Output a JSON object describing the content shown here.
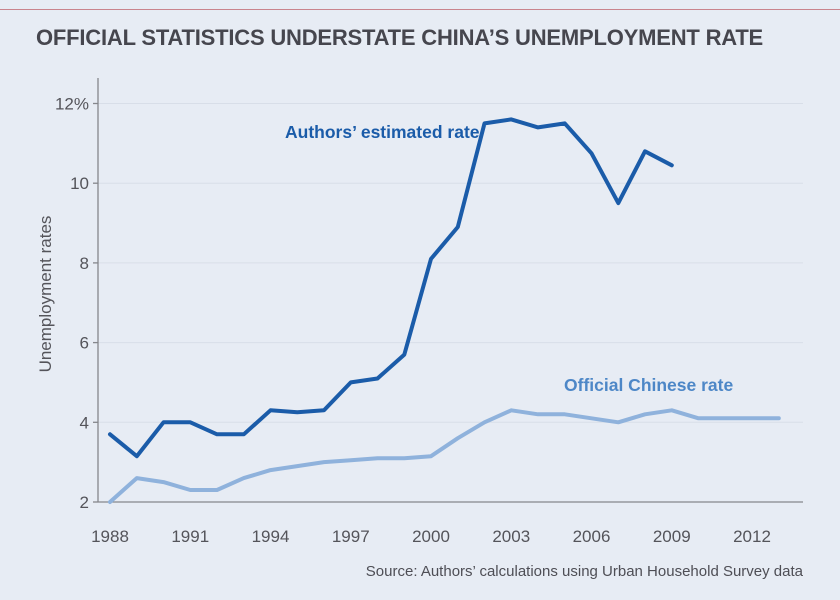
{
  "page": {
    "title": "OFFICIAL STATISTICS UNDERSTATE CHINA’S UNEMPLOYMENT RATE",
    "source_note": "Source: Authors’ calculations using Urban Household Survey data"
  },
  "colors": {
    "background": "#e7ecf4",
    "top_rule": "#c9848d",
    "title_text": "#46464e",
    "axis_text": "#54545a",
    "axis_line": "#85878c",
    "gridline": "#d8dee8",
    "estimated_series": "#1b5ca9",
    "official_series": "#8fb2dc",
    "official_label": "#4d87c7"
  },
  "chart_data": {
    "type": "line",
    "title": "OFFICIAL STATISTICS UNDERSTATE CHINA’S UNEMPLOYMENT RATE",
    "xlabel": "",
    "ylabel": "Unemployment rates",
    "ylim": [
      2,
      12.5
    ],
    "xlim": [
      1987.7,
      2013.9
    ],
    "grid": "horizontal",
    "legend_position": "inline-annotations",
    "y_ticks": [
      {
        "value": 12,
        "label": "12%"
      },
      {
        "value": 10,
        "label": "10"
      },
      {
        "value": 8,
        "label": "8"
      },
      {
        "value": 6,
        "label": "6"
      },
      {
        "value": 4,
        "label": "4"
      },
      {
        "value": 2,
        "label": "2"
      }
    ],
    "x_ticks": [
      1988,
      1991,
      1994,
      1997,
      2000,
      2003,
      2006,
      2009,
      2012
    ],
    "series": [
      {
        "name": "Authors’ estimated rate",
        "color": "#1b5ca9",
        "x": [
          1988,
          1989,
          1990,
          1991,
          1992,
          1993,
          1994,
          1995,
          1996,
          1997,
          1998,
          1999,
          2000,
          2001,
          2002,
          2003,
          2004,
          2005,
          2006,
          2007,
          2008,
          2009
        ],
        "values": [
          3.7,
          3.15,
          4.0,
          4.0,
          3.7,
          3.7,
          4.3,
          4.25,
          4.3,
          5.0,
          5.1,
          5.7,
          8.1,
          8.9,
          11.5,
          11.6,
          11.4,
          11.5,
          10.75,
          9.5,
          10.8,
          10.45
        ]
      },
      {
        "name": "Official Chinese rate",
        "color": "#8fb2dc",
        "x": [
          1988,
          1989,
          1990,
          1991,
          1992,
          1993,
          1994,
          1995,
          1996,
          1997,
          1998,
          1999,
          2000,
          2001,
          2002,
          2003,
          2004,
          2005,
          2006,
          2007,
          2008,
          2009,
          2010,
          2011,
          2012,
          2013
        ],
        "values": [
          2.0,
          2.6,
          2.5,
          2.3,
          2.3,
          2.6,
          2.8,
          2.9,
          3.0,
          3.05,
          3.1,
          3.1,
          3.15,
          3.6,
          4.0,
          4.3,
          4.2,
          4.2,
          4.1,
          4.0,
          4.2,
          4.3,
          4.1,
          4.1,
          4.1,
          4.1
        ]
      }
    ],
    "source": "Source: Authors’ calculations using Urban Household Survey data"
  }
}
